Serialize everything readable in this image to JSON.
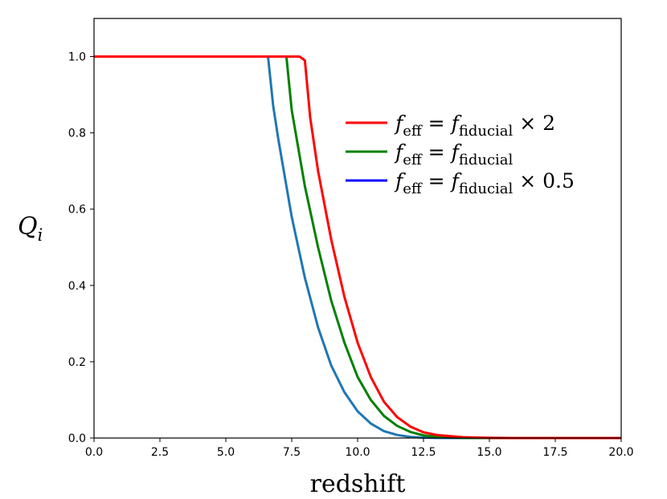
{
  "chart_data": {
    "type": "line",
    "xlabel": "redshift",
    "ylabel": "Q",
    "ylabel_subscript": "i",
    "xlim": [
      0,
      20
    ],
    "ylim": [
      0,
      1.1
    ],
    "xticks": [
      0,
      2.5,
      5,
      7.5,
      10,
      12.5,
      15,
      17.5,
      20
    ],
    "xtick_labels": [
      "0.0",
      "2.5",
      "5.0",
      "7.5",
      "10.0",
      "12.5",
      "15.0",
      "17.5",
      "20.0"
    ],
    "yticks": [
      0,
      0.2,
      0.4,
      0.6,
      0.8,
      1.0
    ],
    "ytick_labels": [
      "0.0",
      "0.2",
      "0.4",
      "0.6",
      "0.8",
      "1.0"
    ],
    "legend_position": "upper-right",
    "series": [
      {
        "name": "f_eff = f_fiducial × 2",
        "legend_color": "#ff0000",
        "color": "#ff0000",
        "x": [
          0,
          7.8,
          8.0,
          8.2,
          8.5,
          9,
          9.5,
          10,
          10.5,
          11,
          11.5,
          12,
          12.5,
          13,
          14,
          15,
          16,
          17,
          18,
          20
        ],
        "y": [
          1.0,
          1.0,
          0.99,
          0.84,
          0.7,
          0.52,
          0.37,
          0.25,
          0.16,
          0.095,
          0.055,
          0.03,
          0.015,
          0.008,
          0.002,
          0.0005,
          0.0001,
          0,
          0,
          0
        ]
      },
      {
        "name": "f_eff = f_fiducial",
        "legend_color": "#008000",
        "color": "#008000",
        "x": [
          0,
          7.3,
          7.5,
          8,
          8.5,
          9,
          9.5,
          10,
          10.5,
          11,
          11.5,
          12,
          12.5,
          13,
          14,
          15,
          16,
          17,
          18,
          20
        ],
        "y": [
          1.0,
          1.0,
          0.86,
          0.66,
          0.5,
          0.36,
          0.25,
          0.16,
          0.1,
          0.058,
          0.032,
          0.016,
          0.007,
          0.003,
          0.0005,
          0.0001,
          0,
          0,
          0,
          0
        ]
      },
      {
        "name": "f_eff = f_fiducial × 0.5",
        "legend_color": "#0000ff",
        "color": "#1f77b4",
        "x": [
          0,
          6.6,
          6.8,
          7,
          7.5,
          8,
          8.5,
          9,
          9.5,
          10,
          10.5,
          11,
          11.5,
          12,
          12.5,
          13,
          14,
          15,
          16,
          20
        ],
        "y": [
          1.0,
          1.0,
          0.87,
          0.78,
          0.58,
          0.42,
          0.29,
          0.19,
          0.12,
          0.07,
          0.038,
          0.018,
          0.008,
          0.003,
          0.001,
          0.0003,
          5e-05,
          0,
          0,
          0
        ]
      }
    ],
    "legend_entries": [
      {
        "base": "f",
        "sub": "eff",
        "eq": "=",
        "base2": "f",
        "sub2": "fiducial",
        "factor": "× 2"
      },
      {
        "base": "f",
        "sub": "eff",
        "eq": "=",
        "base2": "f",
        "sub2": "fiducial",
        "factor": ""
      },
      {
        "base": "f",
        "sub": "eff",
        "eq": "=",
        "base2": "f",
        "sub2": "fiducial",
        "factor": "× 0.5"
      }
    ]
  }
}
